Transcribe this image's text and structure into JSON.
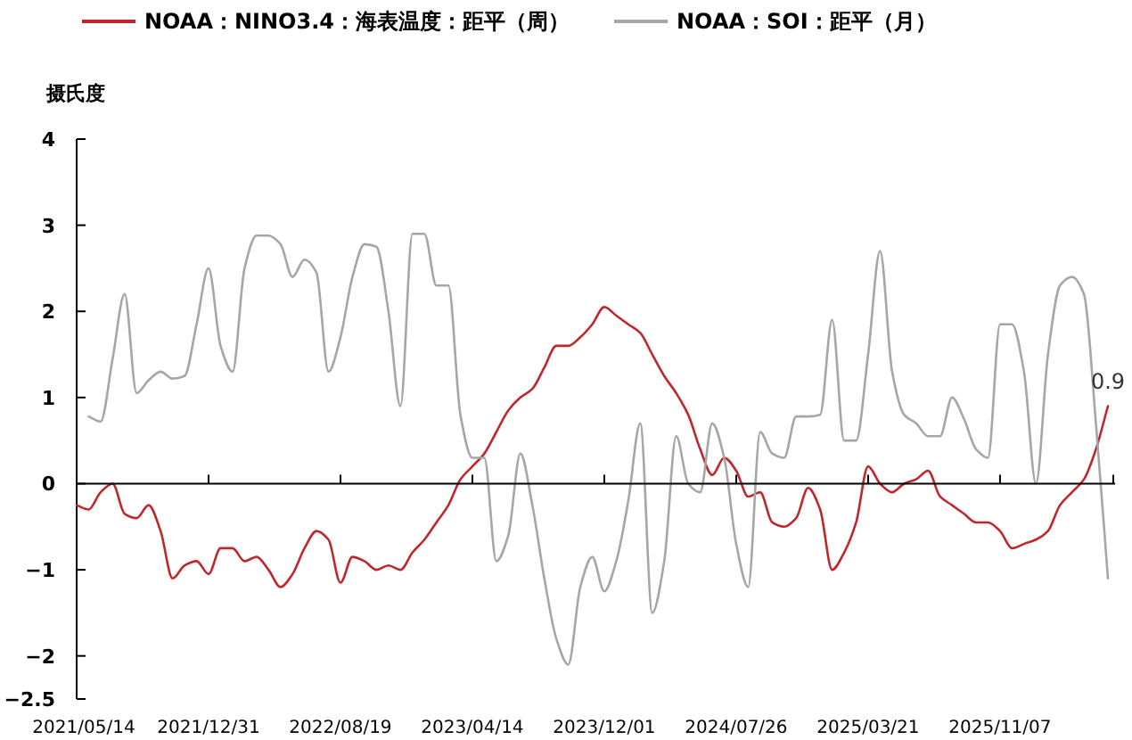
{
  "chart_data": {
    "type": "line",
    "ylabel": "摄氏度",
    "legend": "top",
    "line_style": "solid",
    "categories": [
      "2021/05/14",
      null,
      null,
      null,
      null,
      null,
      null,
      null,
      null,
      null,
      null,
      "2021/12/31",
      null,
      null,
      null,
      null,
      null,
      null,
      null,
      null,
      null,
      null,
      "2022/08/19",
      null,
      null,
      null,
      null,
      null,
      null,
      null,
      null,
      null,
      null,
      "2023/04/14",
      null,
      null,
      null,
      null,
      null,
      null,
      null,
      null,
      null,
      null,
      "2023/12/01",
      null,
      null,
      null,
      null,
      null,
      null,
      null,
      null,
      null,
      null,
      "2024/07/26",
      null,
      null,
      null,
      null,
      null,
      null,
      null,
      null,
      null,
      null,
      "2025/03/21",
      null,
      null,
      null,
      null,
      null,
      null,
      null,
      null,
      null,
      null,
      "2025/11/07",
      null,
      null,
      null,
      null,
      null,
      null,
      null,
      null,
      null
    ],
    "ylim": [
      -2.5,
      4
    ],
    "yticks": [
      -2.5,
      -2,
      -1,
      0,
      1,
      2,
      3,
      4
    ],
    "series": [
      {
        "name": "NOAA：NINO3.4：海表温度：距平（周）",
        "color": "#c0272d",
        "values": [
          -0.25,
          -0.3,
          -0.1,
          0.0,
          -0.35,
          -0.4,
          -0.25,
          -0.55,
          -1.1,
          -0.95,
          -0.9,
          -1.05,
          -0.75,
          -0.75,
          -0.9,
          -0.85,
          -1.0,
          -1.2,
          -1.05,
          -0.75,
          -0.55,
          -0.65,
          -1.15,
          -0.85,
          -0.9,
          -1.0,
          -0.95,
          -1.0,
          -0.8,
          -0.65,
          -0.45,
          -0.25,
          0.05,
          0.2,
          0.35,
          0.6,
          0.85,
          1.0,
          1.1,
          1.35,
          1.6,
          1.6,
          1.7,
          1.85,
          2.05,
          1.95,
          1.85,
          1.75,
          1.5,
          1.25,
          1.05,
          0.8,
          0.4,
          0.1,
          0.3,
          0.15,
          -0.15,
          -0.1,
          -0.45,
          -0.5,
          -0.4,
          -0.05,
          -0.3,
          -1.0,
          -0.8,
          -0.45,
          0.2,
          0.0,
          -0.1,
          0.0,
          0.05,
          0.15,
          -0.15,
          -0.25,
          -0.35,
          -0.45,
          -0.45,
          -0.55,
          -0.75,
          -0.7,
          -0.65,
          -0.55,
          -0.25,
          -0.1,
          0.05,
          0.4,
          0.9
        ]
      },
      {
        "name": "NOAA：SOI：距平（月）",
        "color": "#a6a6a6",
        "values": [
          null,
          0.78,
          0.72,
          1.45,
          2.2,
          1.05,
          1.2,
          1.3,
          1.22,
          1.25,
          1.85,
          2.5,
          1.6,
          1.3,
          2.5,
          2.88,
          2.88,
          2.78,
          2.4,
          2.6,
          2.45,
          1.3,
          1.7,
          2.4,
          2.78,
          2.75,
          2.0,
          0.9,
          2.9,
          2.9,
          2.3,
          2.3,
          0.8,
          0.3,
          0.3,
          -0.9,
          -0.6,
          0.35,
          -0.25,
          -1.1,
          -1.8,
          -2.1,
          -1.2,
          -0.85,
          -1.25,
          -0.9,
          -0.2,
          0.7,
          -1.5,
          -0.9,
          0.55,
          0.0,
          -0.1,
          0.7,
          0.3,
          -0.7,
          -1.2,
          0.6,
          0.35,
          0.3,
          0.78,
          0.78,
          0.8,
          1.9,
          0.5,
          0.5,
          1.5,
          2.7,
          1.3,
          0.8,
          0.7,
          0.55,
          0.55,
          1.0,
          0.75,
          0.4,
          0.3,
          1.85,
          1.85,
          1.3,
          0.0,
          1.5,
          2.3,
          2.4,
          2.2,
          0.7,
          -1.1
        ]
      }
    ],
    "annotations": [
      {
        "text": "0.9",
        "y": 0.9
      }
    ]
  }
}
